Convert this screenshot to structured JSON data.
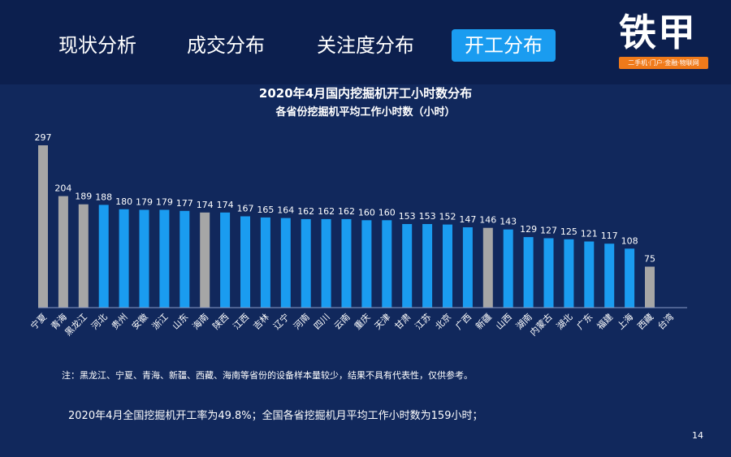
{
  "nav": {
    "tabs": [
      {
        "label": "现状分析",
        "active": false
      },
      {
        "label": "成交分布",
        "active": false
      },
      {
        "label": "关注度分布",
        "active": false
      },
      {
        "label": "开工分布",
        "active": true
      }
    ]
  },
  "logo": {
    "name": "铁甲",
    "tagline": "二手机·门户·金融·物联网"
  },
  "note": "注：黑龙江、宁夏、青海、新疆、西藏、海南等省份的设备样本量较少，结果不具有代表性，仅供参考。",
  "summary": "2020年4月全国挖掘机开工率为49.8%；全国各省挖掘机月平均工作小时数为159小时；",
  "page_number": "14",
  "colors": {
    "background": "#11285c",
    "header": "#0c1f4e",
    "accent": "#1a9cf0",
    "bar_normal": "#1a9cf0",
    "bar_low_sample": "#a6a6a6",
    "logo_orange": "#f07a1a"
  },
  "chart_data": {
    "type": "bar",
    "title": "2020年4月国内挖掘机开工小时数分布",
    "subtitle": "各省份挖掘机平均工作小时数（小时）",
    "categories": [
      "宁夏",
      "青海",
      "黑龙江",
      "河北",
      "贵州",
      "安徽",
      "浙江",
      "山东",
      "海南",
      "陕西",
      "江西",
      "吉林",
      "辽宁",
      "河南",
      "四川",
      "云南",
      "重庆",
      "天津",
      "甘肃",
      "江苏",
      "北京",
      "广西",
      "新疆",
      "山西",
      "湖南",
      "内蒙古",
      "湖北",
      "广东",
      "福建",
      "上海",
      "西藏",
      "台湾"
    ],
    "values": [
      297,
      204,
      189,
      188,
      180,
      179,
      179,
      177,
      174,
      174,
      167,
      165,
      164,
      162,
      162,
      162,
      160,
      160,
      153,
      153,
      152,
      147,
      146,
      143,
      129,
      127,
      125,
      121,
      117,
      108,
      75,
      null
    ],
    "low_sample": [
      "宁夏",
      "青海",
      "黑龙江",
      "海南",
      "新疆",
      "西藏"
    ],
    "ylim": [
      0,
      297
    ],
    "grid": false,
    "legend": "none"
  }
}
